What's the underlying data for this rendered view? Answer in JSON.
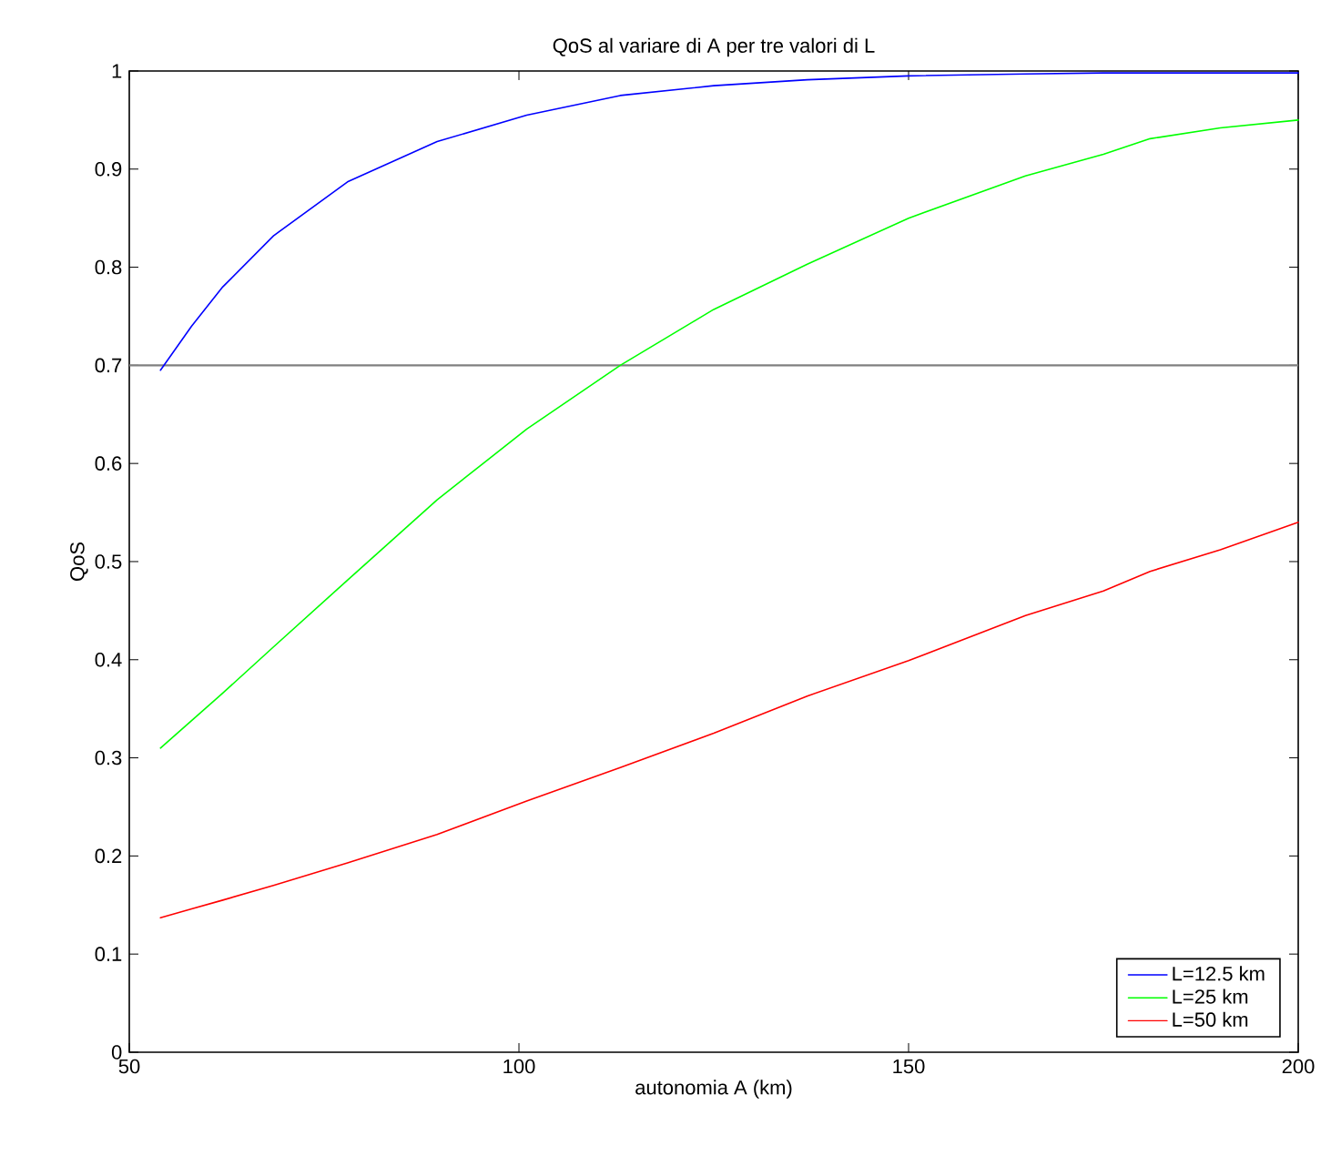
{
  "chart_data": {
    "type": "line",
    "title": "QoS al variare di A per tre valori di L",
    "xlabel": "autonomia   A (km)",
    "ylabel": "QoS",
    "xlim": [
      50,
      200
    ],
    "ylim": [
      0,
      1
    ],
    "xticks": [
      50,
      100,
      150,
      200
    ],
    "yticks": [
      0,
      0.1,
      0.2,
      0.3,
      0.4,
      0.5,
      0.6,
      0.7,
      0.8,
      0.9,
      1
    ],
    "x": [
      54,
      58,
      62,
      68.5,
      78,
      89.5,
      101,
      113,
      125,
      137,
      150,
      165,
      175,
      181,
      190,
      200
    ],
    "series": [
      {
        "name": "L=12.5 km",
        "color": "#0000ff",
        "values": [
          0.695,
          0.74,
          0.78,
          0.832,
          0.887,
          0.928,
          0.955,
          0.975,
          0.985,
          0.991,
          0.995,
          0.997,
          0.998,
          0.998,
          0.998,
          0.998
        ]
      },
      {
        "name": "L=25 km",
        "color": "#00ff00",
        "values": [
          0.31,
          0.338,
          0.366,
          0.413,
          0.481,
          0.563,
          0.635,
          0.7,
          0.757,
          0.803,
          0.85,
          0.893,
          0.915,
          0.931,
          0.942,
          0.95
        ]
      },
      {
        "name": "L=50 km",
        "color": "#ff0000",
        "values": [
          0.137,
          0.146,
          0.155,
          0.17,
          0.193,
          0.222,
          0.256,
          0.29,
          0.325,
          0.363,
          0.399,
          0.445,
          0.47,
          0.49,
          0.512,
          0.54
        ]
      }
    ],
    "ref_lines": [
      {
        "axis": "y",
        "value": 0.7,
        "color": "#808080"
      }
    ],
    "legend": "bottom right",
    "grid": false,
    "marker": "none",
    "line_style": "solid"
  }
}
